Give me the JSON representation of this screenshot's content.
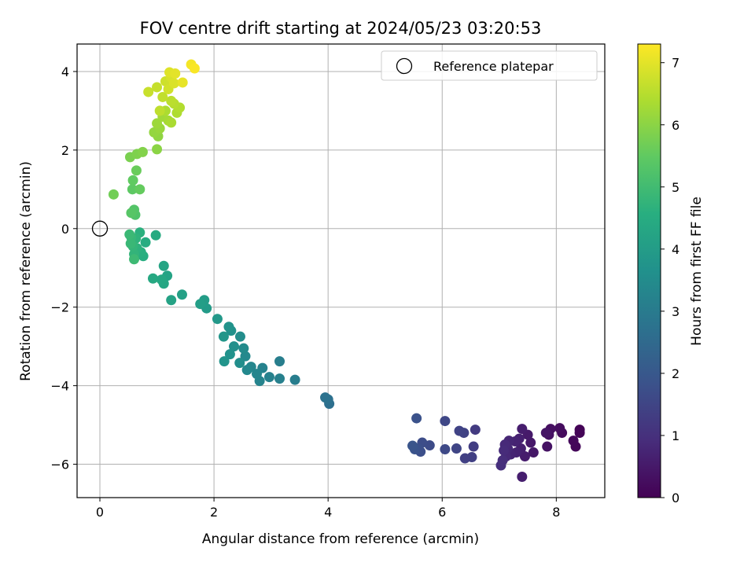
{
  "chart_data": {
    "type": "scatter",
    "title": "FOV centre drift starting at 2024/05/23 03:20:53",
    "xlabel": "Angular distance from reference (arcmin)",
    "ylabel": "Rotation from reference (arcmin)",
    "xlim": [
      -0.4,
      8.85
    ],
    "ylim": [
      -6.85,
      4.7
    ],
    "xticks": [
      0,
      2,
      4,
      6,
      8
    ],
    "yticks": [
      -6,
      -4,
      -2,
      0,
      2,
      4
    ],
    "xtick_labels": [
      "0",
      "2",
      "4",
      "6",
      "8"
    ],
    "ytick_labels": [
      "−6",
      "−4",
      "−2",
      "0",
      "2",
      "4"
    ],
    "grid": true,
    "colormap": "viridis",
    "colorbar": {
      "label": "Hours from first FF file",
      "range": [
        0,
        7.3
      ],
      "ticks": [
        0,
        1,
        2,
        3,
        4,
        5,
        6,
        7
      ],
      "tick_labels": [
        "0",
        "1",
        "2",
        "3",
        "4",
        "5",
        "6",
        "7"
      ]
    },
    "legend": {
      "position": "top-right",
      "entries": [
        {
          "label": "Reference platepar",
          "marker": "open-circle",
          "x": 0,
          "y": 0
        }
      ]
    },
    "points": [
      {
        "x": 8.41,
        "y": -5.12,
        "t": 0.05
      },
      {
        "x": 8.41,
        "y": -5.2,
        "t": 0.08
      },
      {
        "x": 8.34,
        "y": -5.55,
        "t": 0.12
      },
      {
        "x": 8.3,
        "y": -5.4,
        "t": 0.15
      },
      {
        "x": 8.1,
        "y": -5.2,
        "t": 0.2
      },
      {
        "x": 8.06,
        "y": -5.08,
        "t": 0.24
      },
      {
        "x": 7.9,
        "y": -5.1,
        "t": 0.28
      },
      {
        "x": 7.87,
        "y": -5.25,
        "t": 0.32
      },
      {
        "x": 7.84,
        "y": -5.55,
        "t": 0.36
      },
      {
        "x": 7.82,
        "y": -5.2,
        "t": 0.4
      },
      {
        "x": 7.6,
        "y": -5.7,
        "t": 0.45
      },
      {
        "x": 7.55,
        "y": -5.45,
        "t": 0.48
      },
      {
        "x": 7.5,
        "y": -5.25,
        "t": 0.52
      },
      {
        "x": 7.45,
        "y": -5.8,
        "t": 0.55
      },
      {
        "x": 7.4,
        "y": -5.1,
        "t": 0.58
      },
      {
        "x": 7.4,
        "y": -6.32,
        "t": 0.6
      },
      {
        "x": 7.38,
        "y": -5.6,
        "t": 0.62
      },
      {
        "x": 7.35,
        "y": -5.35,
        "t": 0.65
      },
      {
        "x": 7.3,
        "y": -5.7,
        "t": 0.68
      },
      {
        "x": 7.28,
        "y": -5.42,
        "t": 0.7
      },
      {
        "x": 7.2,
        "y": -5.75,
        "t": 0.73
      },
      {
        "x": 7.17,
        "y": -5.4,
        "t": 0.76
      },
      {
        "x": 7.15,
        "y": -5.6,
        "t": 0.8
      },
      {
        "x": 7.12,
        "y": -5.8,
        "t": 0.83
      },
      {
        "x": 7.1,
        "y": -5.5,
        "t": 0.86
      },
      {
        "x": 7.08,
        "y": -5.65,
        "t": 0.9
      },
      {
        "x": 7.06,
        "y": -5.9,
        "t": 0.93
      },
      {
        "x": 7.03,
        "y": -6.03,
        "t": 0.96
      },
      {
        "x": 6.58,
        "y": -5.12,
        "t": 1.25
      },
      {
        "x": 6.55,
        "y": -5.55,
        "t": 1.3
      },
      {
        "x": 6.52,
        "y": -5.82,
        "t": 1.35
      },
      {
        "x": 6.4,
        "y": -5.85,
        "t": 1.38
      },
      {
        "x": 6.38,
        "y": -5.2,
        "t": 1.42
      },
      {
        "x": 6.3,
        "y": -5.15,
        "t": 1.46
      },
      {
        "x": 6.25,
        "y": -5.6,
        "t": 1.5
      },
      {
        "x": 6.05,
        "y": -4.9,
        "t": 1.55
      },
      {
        "x": 6.05,
        "y": -5.62,
        "t": 1.6
      },
      {
        "x": 5.78,
        "y": -5.52,
        "t": 1.66
      },
      {
        "x": 5.65,
        "y": -5.45,
        "t": 1.7
      },
      {
        "x": 5.62,
        "y": -5.68,
        "t": 1.74
      },
      {
        "x": 5.58,
        "y": -5.6,
        "t": 1.78
      },
      {
        "x": 5.55,
        "y": -4.83,
        "t": 1.82
      },
      {
        "x": 5.52,
        "y": -5.62,
        "t": 1.86
      },
      {
        "x": 5.48,
        "y": -5.53,
        "t": 1.9
      },
      {
        "x": 4.02,
        "y": -4.46,
        "t": 2.65
      },
      {
        "x": 4.0,
        "y": -4.35,
        "t": 2.7
      },
      {
        "x": 3.95,
        "y": -4.3,
        "t": 2.75
      },
      {
        "x": 3.42,
        "y": -3.85,
        "t": 3.05
      },
      {
        "x": 3.15,
        "y": -3.38,
        "t": 3.1
      },
      {
        "x": 3.15,
        "y": -3.82,
        "t": 3.14
      },
      {
        "x": 2.97,
        "y": -3.78,
        "t": 3.18
      },
      {
        "x": 2.85,
        "y": -3.55,
        "t": 3.22
      },
      {
        "x": 2.8,
        "y": -3.88,
        "t": 3.26
      },
      {
        "x": 2.75,
        "y": -3.7,
        "t": 3.3
      },
      {
        "x": 2.65,
        "y": -3.52,
        "t": 3.34
      },
      {
        "x": 2.58,
        "y": -3.6,
        "t": 3.38
      },
      {
        "x": 2.55,
        "y": -3.25,
        "t": 3.42
      },
      {
        "x": 2.52,
        "y": -3.05,
        "t": 3.46
      },
      {
        "x": 2.46,
        "y": -2.75,
        "t": 3.52
      },
      {
        "x": 2.45,
        "y": -3.42,
        "t": 3.56
      },
      {
        "x": 2.35,
        "y": -3.0,
        "t": 3.6
      },
      {
        "x": 2.3,
        "y": -2.6,
        "t": 3.64
      },
      {
        "x": 2.28,
        "y": -3.2,
        "t": 3.68
      },
      {
        "x": 2.26,
        "y": -2.5,
        "t": 3.72
      },
      {
        "x": 2.18,
        "y": -3.38,
        "t": 3.76
      },
      {
        "x": 2.17,
        "y": -2.75,
        "t": 3.8
      },
      {
        "x": 2.06,
        "y": -2.3,
        "t": 3.86
      },
      {
        "x": 1.87,
        "y": -2.03,
        "t": 3.95
      },
      {
        "x": 1.83,
        "y": -1.82,
        "t": 4.0
      },
      {
        "x": 1.76,
        "y": -1.92,
        "t": 4.05
      },
      {
        "x": 1.44,
        "y": -1.68,
        "t": 4.12
      },
      {
        "x": 1.25,
        "y": -1.82,
        "t": 4.18
      },
      {
        "x": 1.18,
        "y": -1.2,
        "t": 4.22
      },
      {
        "x": 1.12,
        "y": -0.95,
        "t": 4.26
      },
      {
        "x": 1.12,
        "y": -1.4,
        "t": 4.3
      },
      {
        "x": 1.08,
        "y": -1.3,
        "t": 4.34
      },
      {
        "x": 0.93,
        "y": -1.27,
        "t": 4.38
      },
      {
        "x": 0.98,
        "y": -0.17,
        "t": 4.45
      },
      {
        "x": 0.8,
        "y": -0.35,
        "t": 4.5
      },
      {
        "x": 0.76,
        "y": -0.7,
        "t": 4.54
      },
      {
        "x": 0.72,
        "y": -0.6,
        "t": 4.58
      },
      {
        "x": 0.7,
        "y": -0.1,
        "t": 4.62
      },
      {
        "x": 0.65,
        "y": -0.5,
        "t": 4.66
      },
      {
        "x": 0.63,
        "y": -0.25,
        "t": 4.7
      },
      {
        "x": 0.6,
        "y": -0.65,
        "t": 4.74
      },
      {
        "x": 0.58,
        "y": -0.45,
        "t": 4.78
      },
      {
        "x": 0.55,
        "y": -0.22,
        "t": 4.82
      },
      {
        "x": 0.54,
        "y": -0.38,
        "t": 4.86
      },
      {
        "x": 0.52,
        "y": -0.15,
        "t": 4.9
      },
      {
        "x": 0.6,
        "y": -0.78,
        "t": 4.94
      },
      {
        "x": 0.62,
        "y": 0.35,
        "t": 5.25
      },
      {
        "x": 0.6,
        "y": 0.48,
        "t": 5.3
      },
      {
        "x": 0.55,
        "y": 0.4,
        "t": 5.35
      },
      {
        "x": 0.57,
        "y": 1.0,
        "t": 5.45
      },
      {
        "x": 0.58,
        "y": 1.23,
        "t": 5.5
      },
      {
        "x": 0.7,
        "y": 1.0,
        "t": 5.55
      },
      {
        "x": 0.64,
        "y": 1.48,
        "t": 5.6
      },
      {
        "x": 0.24,
        "y": 0.87,
        "t": 5.7
      },
      {
        "x": 0.53,
        "y": 1.82,
        "t": 5.8
      },
      {
        "x": 0.65,
        "y": 1.9,
        "t": 5.85
      },
      {
        "x": 0.75,
        "y": 1.95,
        "t": 5.9
      },
      {
        "x": 1.0,
        "y": 2.02,
        "t": 6.0
      },
      {
        "x": 1.02,
        "y": 2.35,
        "t": 6.05
      },
      {
        "x": 0.95,
        "y": 2.45,
        "t": 6.1
      },
      {
        "x": 1.05,
        "y": 2.55,
        "t": 6.15
      },
      {
        "x": 1.0,
        "y": 2.68,
        "t": 6.2
      },
      {
        "x": 1.1,
        "y": 2.85,
        "t": 6.25
      },
      {
        "x": 1.2,
        "y": 2.75,
        "t": 6.3
      },
      {
        "x": 1.25,
        "y": 2.7,
        "t": 6.35
      },
      {
        "x": 1.15,
        "y": 3.0,
        "t": 6.38
      },
      {
        "x": 1.35,
        "y": 2.95,
        "t": 6.4
      },
      {
        "x": 1.4,
        "y": 3.08,
        "t": 6.45
      },
      {
        "x": 1.3,
        "y": 3.18,
        "t": 6.5
      },
      {
        "x": 1.25,
        "y": 3.25,
        "t": 6.55
      },
      {
        "x": 1.05,
        "y": 3.0,
        "t": 6.58
      },
      {
        "x": 1.1,
        "y": 3.35,
        "t": 6.62
      },
      {
        "x": 1.0,
        "y": 3.6,
        "t": 6.66
      },
      {
        "x": 0.85,
        "y": 3.48,
        "t": 6.7
      },
      {
        "x": 1.15,
        "y": 3.75,
        "t": 6.75
      },
      {
        "x": 1.2,
        "y": 3.55,
        "t": 6.8
      },
      {
        "x": 1.25,
        "y": 3.85,
        "t": 6.85
      },
      {
        "x": 1.3,
        "y": 3.7,
        "t": 6.9
      },
      {
        "x": 1.22,
        "y": 3.98,
        "t": 6.95
      },
      {
        "x": 1.32,
        "y": 3.95,
        "t": 7.0
      },
      {
        "x": 1.45,
        "y": 3.72,
        "t": 7.05
      },
      {
        "x": 1.6,
        "y": 4.18,
        "t": 7.2
      },
      {
        "x": 1.66,
        "y": 4.08,
        "t": 7.25
      }
    ]
  }
}
